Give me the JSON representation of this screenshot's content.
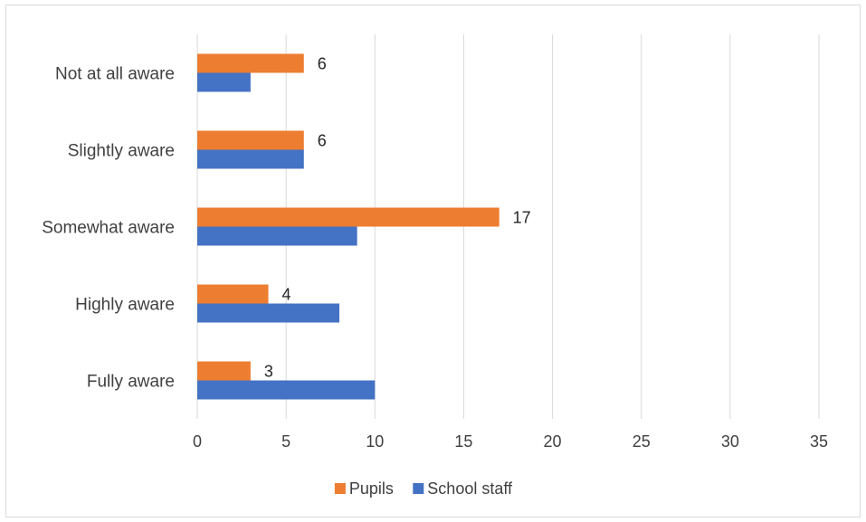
{
  "chart_data": {
    "type": "bar",
    "orientation": "horizontal",
    "categories": [
      "Not at all aware",
      "Slightly aware",
      "Somewhat aware",
      "Highly aware",
      "Fully aware"
    ],
    "series": [
      {
        "name": "Pupils",
        "values": [
          6,
          6,
          17,
          4,
          3
        ],
        "color": "#ed7d31",
        "data_labels": true
      },
      {
        "name": "School staff",
        "values": [
          3,
          6,
          9,
          8,
          10
        ],
        "color": "#4472c4",
        "data_labels": false
      }
    ],
    "xlim": [
      0,
      35
    ],
    "xticks": [
      0,
      5,
      10,
      15,
      20,
      25,
      30,
      35
    ],
    "grid": true,
    "legend": "bottom",
    "title": "",
    "xlabel": "",
    "ylabel": ""
  }
}
